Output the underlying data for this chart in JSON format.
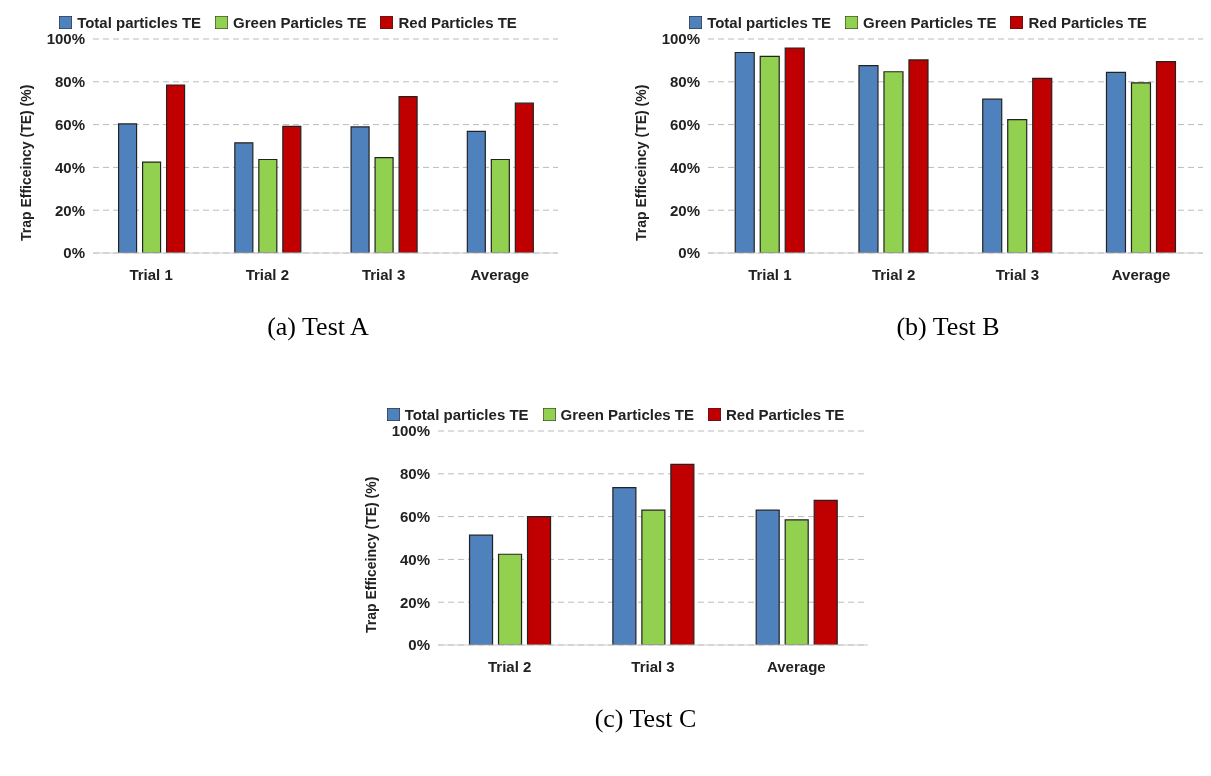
{
  "chart_data": [
    {
      "type": "bar",
      "title": "(a) Test A",
      "ylabel": "Trap Efficeincy (TE) (%)",
      "categories": [
        "Trial 1",
        "Trial 2",
        "Trial 3",
        "Average"
      ],
      "series": [
        {
          "name": "Total particles TE",
          "color": "#4f81bd",
          "values": [
            60.3,
            51.5,
            58.9,
            56.8
          ]
        },
        {
          "name": "Green Particles TE",
          "color": "#92d050",
          "values": [
            42.5,
            43.7,
            44.6,
            43.7
          ]
        },
        {
          "name": "Red Particles TE",
          "color": "#c00000",
          "values": [
            78.5,
            59.2,
            73.1,
            70
          ]
        }
      ],
      "ylim": [
        0,
        100
      ],
      "yticks": [
        {
          "value": 0,
          "label": "0%"
        },
        {
          "value": 20,
          "label": "20%"
        },
        {
          "value": 40,
          "label": "40%"
        },
        {
          "value": 60,
          "label": "60%"
        },
        {
          "value": 80,
          "label": "80%"
        },
        {
          "value": 100,
          "label": "100%"
        }
      ],
      "grid": "y",
      "legend": "top"
    },
    {
      "type": "bar",
      "title": "(b) Test B",
      "ylabel": "Trap Efficeincy (TE) (%)",
      "categories": [
        "Trial 1",
        "Trial 2",
        "Trial 3",
        "Average"
      ],
      "series": [
        {
          "name": "Total particles TE",
          "color": "#4f81bd",
          "values": [
            93.7,
            87.6,
            71.9,
            84.4
          ]
        },
        {
          "name": "Green Particles TE",
          "color": "#92d050",
          "values": [
            91.9,
            84.7,
            62.3,
            79.5
          ]
        },
        {
          "name": "Red Particles TE",
          "color": "#c00000",
          "values": [
            95.8,
            90.2,
            81.6,
            89.4
          ]
        }
      ],
      "ylim": [
        0,
        100
      ],
      "yticks": [
        {
          "value": 0,
          "label": "0%"
        },
        {
          "value": 20,
          "label": "20%"
        },
        {
          "value": 40,
          "label": "40%"
        },
        {
          "value": 60,
          "label": "60%"
        },
        {
          "value": 80,
          "label": "80%"
        },
        {
          "value": 100,
          "label": "100%"
        }
      ],
      "grid": "y",
      "legend": "top"
    },
    {
      "type": "bar",
      "title": "(c) Test C",
      "ylabel": "Trap Efficeincy (TE) (%)",
      "categories": [
        "Trial 2",
        "Trial 3",
        "Average"
      ],
      "series": [
        {
          "name": "Total particles TE",
          "color": "#4f81bd",
          "values": [
            51.3,
            73.5,
            63
          ]
        },
        {
          "name": "Green Particles TE",
          "color": "#92d050",
          "values": [
            42.4,
            63,
            58.5
          ]
        },
        {
          "name": "Red Particles TE",
          "color": "#c00000",
          "values": [
            60,
            84.4,
            67.6
          ]
        }
      ],
      "ylim": [
        0,
        100
      ],
      "yticks": [
        {
          "value": 0,
          "label": "0%"
        },
        {
          "value": 20,
          "label": "20%"
        },
        {
          "value": 40,
          "label": "40%"
        },
        {
          "value": 60,
          "label": "60%"
        },
        {
          "value": 80,
          "label": "80%"
        },
        {
          "value": 100,
          "label": "100%"
        }
      ],
      "grid": "y",
      "legend": "top"
    }
  ]
}
